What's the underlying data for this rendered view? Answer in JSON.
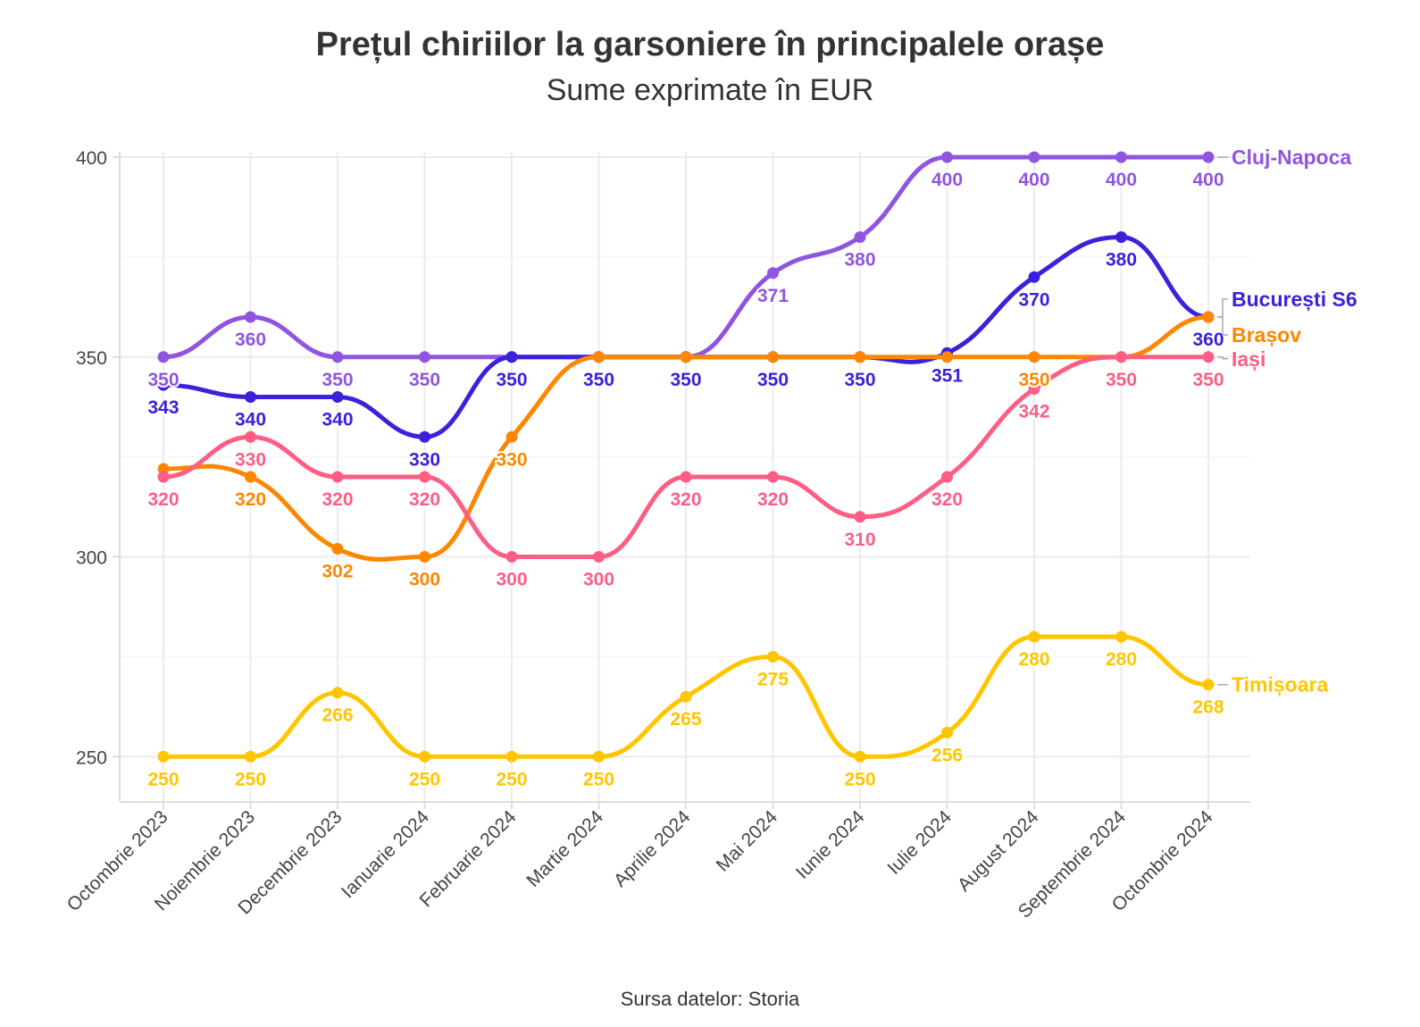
{
  "chart_data": {
    "type": "line",
    "title": "Prețul chiriilor la garsoniere în principalele orașe",
    "subtitle": "Sume exprimate în EUR",
    "caption": "Sursa datelor: Storia",
    "categories": [
      "Octombrie 2023",
      "Noiembrie 2023",
      "Decembrie 2023",
      "Ianuarie 2024",
      "Februarie 2024",
      "Martie 2024",
      "Aprilie 2024",
      "Mai 2024",
      "Iunie 2024",
      "Iulie 2024",
      "August 2024",
      "Septembrie 2024",
      "Octombrie 2024"
    ],
    "ylim": [
      240,
      402
    ],
    "yticks": [
      250,
      300,
      350,
      400
    ],
    "yticklabels": [
      "250",
      "300",
      "350",
      "400"
    ],
    "grid": true,
    "legend": "end-of-line labels",
    "series": [
      {
        "name": "Cluj-Napoca",
        "color": "#9055e0",
        "values": [
          350,
          360,
          350,
          350,
          350,
          350,
          350,
          371,
          380,
          400,
          400,
          400,
          400
        ],
        "labels": [
          "350",
          "360",
          "350",
          "350",
          "",
          "",
          "",
          "371",
          "380",
          "400",
          "400",
          "400",
          "400"
        ]
      },
      {
        "name": "București S6",
        "color": "#3a22dc",
        "values": [
          343,
          340,
          340,
          330,
          350,
          350,
          350,
          350,
          350,
          351,
          370,
          380,
          360
        ],
        "labels": [
          "343",
          "340",
          "340",
          "330",
          "350",
          "350",
          "350",
          "350",
          "350",
          "351",
          "370",
          "380",
          "360"
        ]
      },
      {
        "name": "Brașov",
        "color": "#ff8600",
        "values": [
          322,
          320,
          302,
          300,
          330,
          350,
          350,
          350,
          350,
          350,
          350,
          350,
          360
        ],
        "labels": [
          "",
          "320",
          "302",
          "300",
          "330",
          "",
          "",
          "",
          "",
          "",
          "350",
          "",
          ""
        ]
      },
      {
        "name": "Iași",
        "color": "#ff5e84",
        "values": [
          320,
          330,
          320,
          320,
          300,
          300,
          320,
          320,
          310,
          320,
          342,
          350,
          350
        ],
        "labels": [
          "320",
          "330",
          "320",
          "320",
          "300",
          "300",
          "320",
          "320",
          "310",
          "320",
          "342",
          "350",
          "350"
        ]
      },
      {
        "name": "Timișoara",
        "color": "#ffc600",
        "values": [
          250,
          250,
          266,
          250,
          250,
          250,
          265,
          275,
          250,
          256,
          280,
          280,
          268
        ],
        "labels": [
          "250",
          "250",
          "266",
          "250",
          "250",
          "250",
          "265",
          "275",
          "250",
          "256",
          "280",
          "280",
          "268"
        ]
      }
    ]
  }
}
